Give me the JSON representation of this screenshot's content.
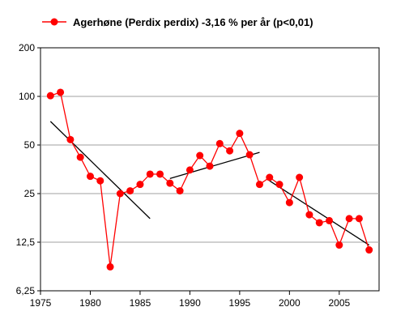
{
  "chart_data": {
    "type": "line",
    "title": "",
    "legend_position": "top-left",
    "xlabel": "",
    "ylabel": "",
    "x_scale": "linear",
    "y_scale": "log2",
    "xlim": [
      1975,
      2009
    ],
    "ylim": [
      6.25,
      200
    ],
    "x_ticks": [
      1975,
      1980,
      1985,
      1990,
      1995,
      2000,
      2005
    ],
    "x_tick_labels": [
      "1975",
      "1980",
      "1985",
      "1990",
      "1995",
      "2000",
      "2005"
    ],
    "y_ticks": [
      6.25,
      12.5,
      25,
      50,
      100,
      200
    ],
    "y_tick_labels": [
      "6,25",
      "12,5",
      "25",
      "50",
      "100",
      "200"
    ],
    "grid": {
      "horizontal": true,
      "vertical": false
    },
    "series": [
      {
        "name": "Agerhøne (Perdix perdix) -3,16 % per år (p<0,01)",
        "color": "#ff0000",
        "marker": "circle",
        "x": [
          1976,
          1977,
          1978,
          1979,
          1980,
          1981,
          1982,
          1983,
          1984,
          1985,
          1986,
          1987,
          1988,
          1989,
          1990,
          1991,
          1992,
          1993,
          1994,
          1995,
          1996,
          1997,
          1998,
          1999,
          2000,
          2001,
          2002,
          2003,
          2004,
          2005,
          2006,
          2007,
          2008
        ],
        "y": [
          101,
          106,
          54,
          42,
          32,
          30,
          8.8,
          25,
          26,
          28.5,
          33,
          33,
          29,
          26,
          35,
          43,
          37,
          51,
          46,
          59,
          43.5,
          28.5,
          31.5,
          28.5,
          22,
          31.5,
          18.5,
          16.5,
          17,
          12,
          17.5,
          17.5,
          11.2
        ]
      }
    ],
    "trend_lines": [
      {
        "color": "#000000",
        "x": [
          1976,
          1986
        ],
        "y": [
          70,
          17.5
        ]
      },
      {
        "color": "#000000",
        "x": [
          1988,
          1997
        ],
        "y": [
          31,
          45
        ]
      },
      {
        "color": "#000000",
        "x": [
          1998,
          2008
        ],
        "y": [
          30,
          12
        ]
      }
    ]
  }
}
